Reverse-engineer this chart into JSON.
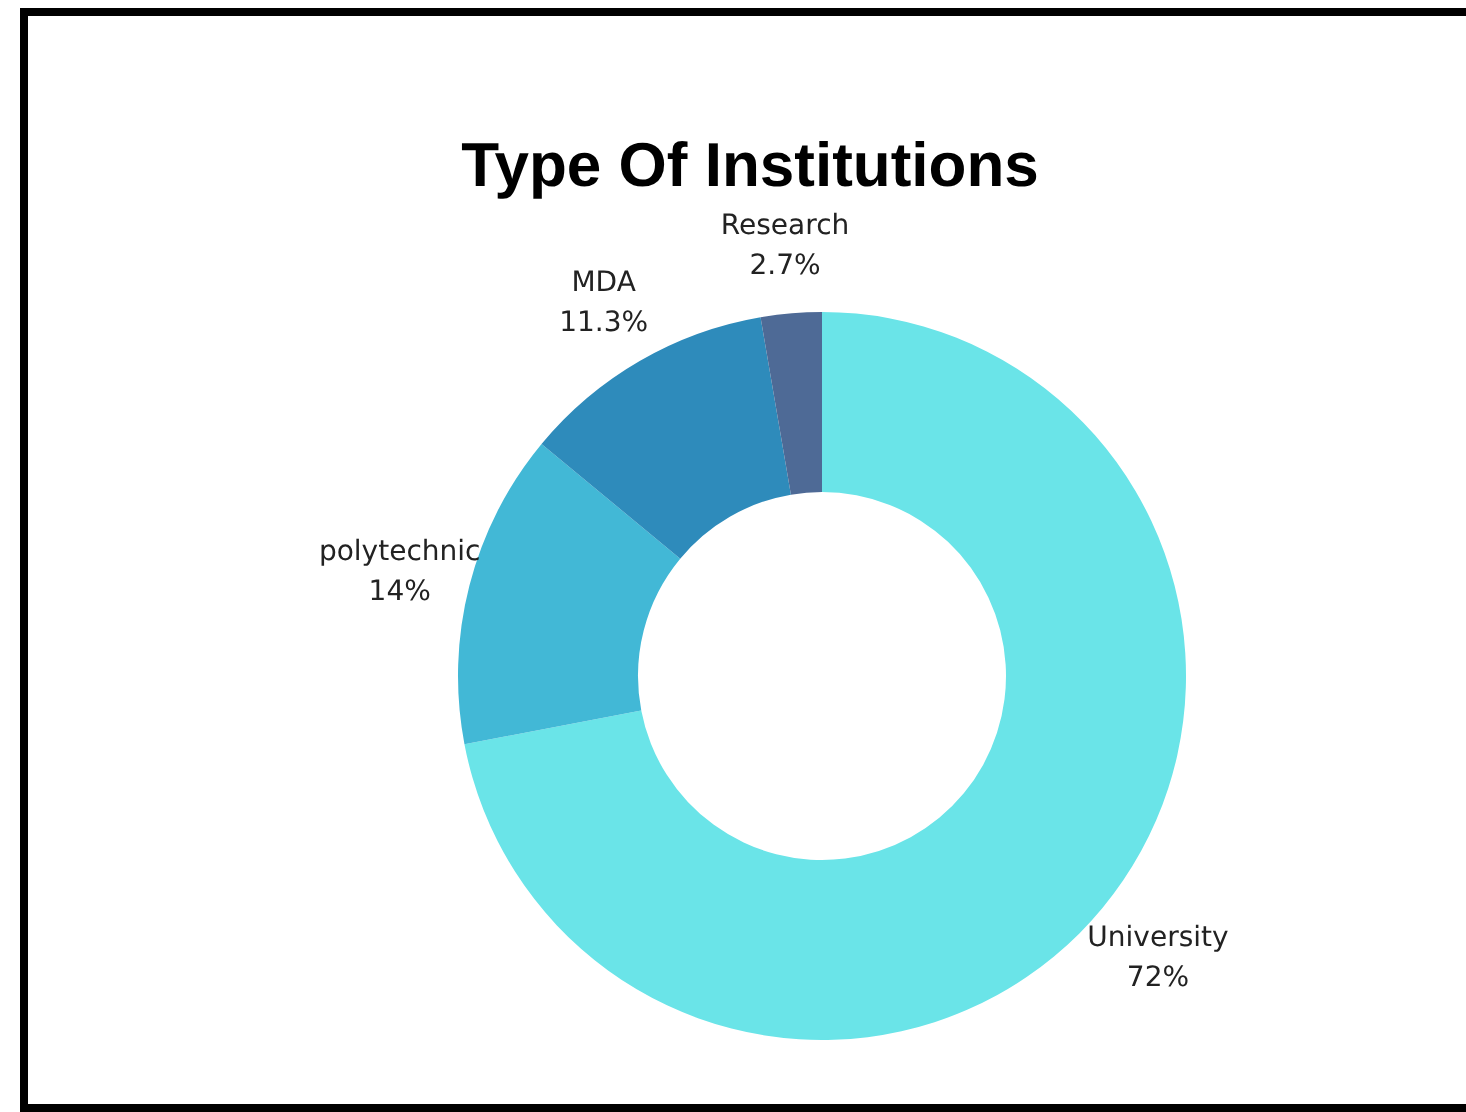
{
  "chart_data": {
    "type": "donut",
    "title": "Type Of Institutions",
    "categories": [
      "University",
      "polytechnic",
      "MDA",
      "Research"
    ],
    "values": [
      72,
      14,
      11.3,
      2.7
    ],
    "colors": [
      "#6ae4e8",
      "#42b8d6",
      "#2e8bbb",
      "#4e6a96"
    ],
    "value_labels": [
      "72%",
      "14%",
      "11.3%",
      "2.7%"
    ],
    "legend": false
  }
}
